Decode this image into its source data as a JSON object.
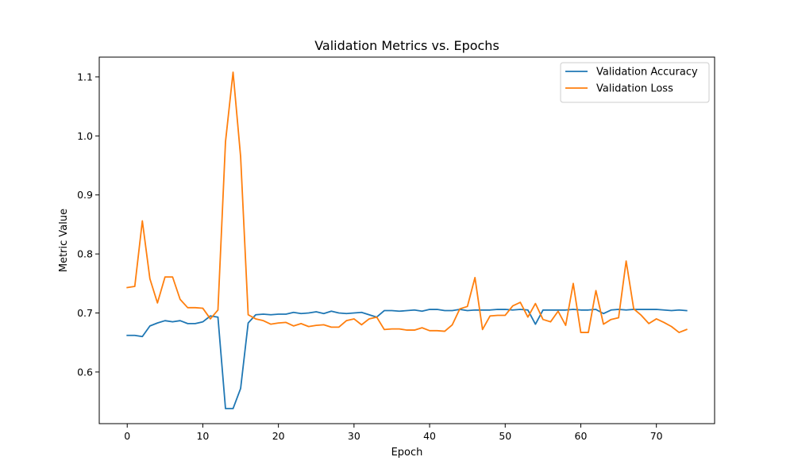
{
  "chart_data": {
    "type": "line",
    "title": "Validation Metrics vs. Epochs",
    "xlabel": "Epoch",
    "ylabel": "Metric Value",
    "xlim": [
      -3.7,
      77.7
    ],
    "ylim": [
      0.5125,
      1.1335
    ],
    "xticks": [
      0,
      10,
      20,
      30,
      40,
      50,
      60,
      70
    ],
    "yticks": [
      0.6,
      0.7,
      0.8,
      0.9,
      1.0,
      1.1
    ],
    "ytick_labels": [
      "0.6",
      "0.7",
      "0.8",
      "0.9",
      "1.0",
      "1.1"
    ],
    "grid": false,
    "legend_position": "top-right",
    "x": [
      0,
      1,
      2,
      3,
      4,
      5,
      6,
      7,
      8,
      9,
      10,
      11,
      12,
      13,
      14,
      15,
      16,
      17,
      18,
      19,
      20,
      21,
      22,
      23,
      24,
      25,
      26,
      27,
      28,
      29,
      30,
      31,
      32,
      33,
      34,
      35,
      36,
      37,
      38,
      39,
      40,
      41,
      42,
      43,
      44,
      45,
      46,
      47,
      48,
      49,
      50,
      51,
      52,
      53,
      54,
      55,
      56,
      57,
      58,
      59,
      60,
      61,
      62,
      63,
      64,
      65,
      66,
      67,
      68,
      69,
      70,
      71,
      72,
      73,
      74
    ],
    "series": [
      {
        "name": "Validation Accuracy",
        "color": "#1f77b4",
        "values": [
          0.662,
          0.662,
          0.66,
          0.678,
          0.683,
          0.687,
          0.685,
          0.687,
          0.682,
          0.682,
          0.685,
          0.695,
          0.693,
          0.538,
          0.538,
          0.572,
          0.683,
          0.697,
          0.698,
          0.697,
          0.698,
          0.698,
          0.701,
          0.699,
          0.7,
          0.702,
          0.699,
          0.703,
          0.7,
          0.699,
          0.7,
          0.701,
          0.697,
          0.693,
          0.704,
          0.704,
          0.703,
          0.704,
          0.705,
          0.703,
          0.706,
          0.706,
          0.704,
          0.704,
          0.706,
          0.704,
          0.705,
          0.705,
          0.705,
          0.706,
          0.706,
          0.705,
          0.706,
          0.705,
          0.681,
          0.705,
          0.705,
          0.705,
          0.705,
          0.706,
          0.705,
          0.705,
          0.706,
          0.699,
          0.705,
          0.706,
          0.705,
          0.706,
          0.706,
          0.706,
          0.706,
          0.705,
          0.704,
          0.705,
          0.704
        ]
      },
      {
        "name": "Validation Loss",
        "color": "#ff7f0e",
        "values": [
          0.743,
          0.745,
          0.856,
          0.758,
          0.717,
          0.761,
          0.761,
          0.723,
          0.709,
          0.709,
          0.708,
          0.69,
          0.705,
          0.99,
          1.108,
          0.965,
          0.697,
          0.69,
          0.687,
          0.681,
          0.683,
          0.684,
          0.678,
          0.682,
          0.677,
          0.679,
          0.68,
          0.676,
          0.676,
          0.687,
          0.69,
          0.68,
          0.69,
          0.693,
          0.672,
          0.673,
          0.673,
          0.671,
          0.671,
          0.675,
          0.67,
          0.67,
          0.669,
          0.68,
          0.707,
          0.711,
          0.76,
          0.672,
          0.695,
          0.696,
          0.696,
          0.712,
          0.718,
          0.693,
          0.716,
          0.689,
          0.685,
          0.703,
          0.679,
          0.75,
          0.667,
          0.667,
          0.738,
          0.681,
          0.689,
          0.692,
          0.788,
          0.707,
          0.696,
          0.682,
          0.69,
          0.684,
          0.677,
          0.667,
          0.672
        ]
      }
    ]
  }
}
